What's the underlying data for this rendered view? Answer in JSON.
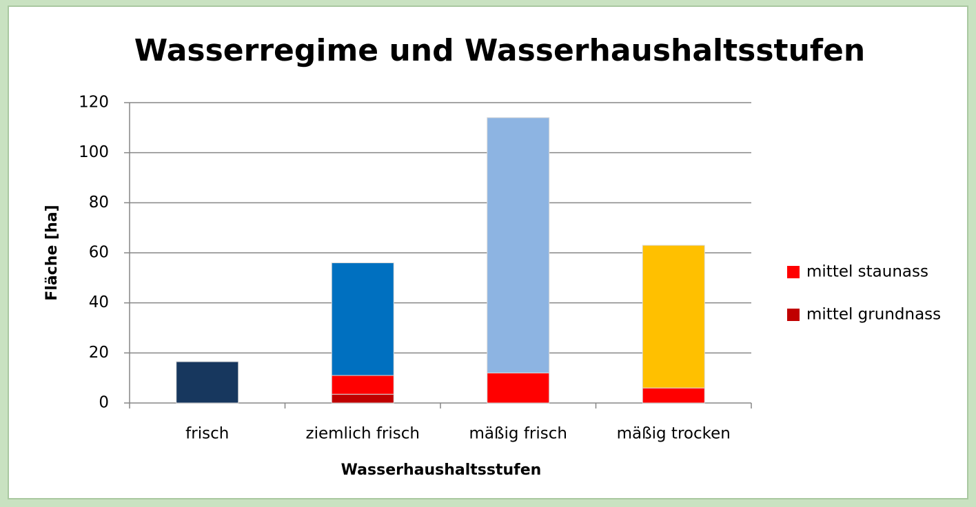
{
  "chart_data": {
    "type": "bar",
    "stacked": true,
    "title": "Wasserregime und Wasserhaushaltsstufen",
    "x_label": "Wasserhaushaltsstufen",
    "y_label": "Fläche [ha]",
    "categories": [
      "frisch",
      "ziemlich frisch",
      "mäßig frisch",
      "mäßig trocken"
    ],
    "series": [
      {
        "name": "mittel grundnass",
        "color": "#c00000",
        "values": [
          0,
          3.5,
          0,
          0
        ]
      },
      {
        "name": "mittel staunass",
        "color": "#ff0000",
        "values": [
          0,
          7.5,
          12,
          6
        ]
      },
      {
        "colors": [
          "#17375e",
          "#0070c0",
          "#8db4e2",
          "#ffc000"
        ],
        "values": [
          16.5,
          45,
          102,
          57
        ]
      }
    ],
    "ylim": [
      0,
      120
    ],
    "yticks": [
      0,
      20,
      40,
      60,
      80,
      100,
      120
    ],
    "grid": true,
    "legend": "right"
  }
}
